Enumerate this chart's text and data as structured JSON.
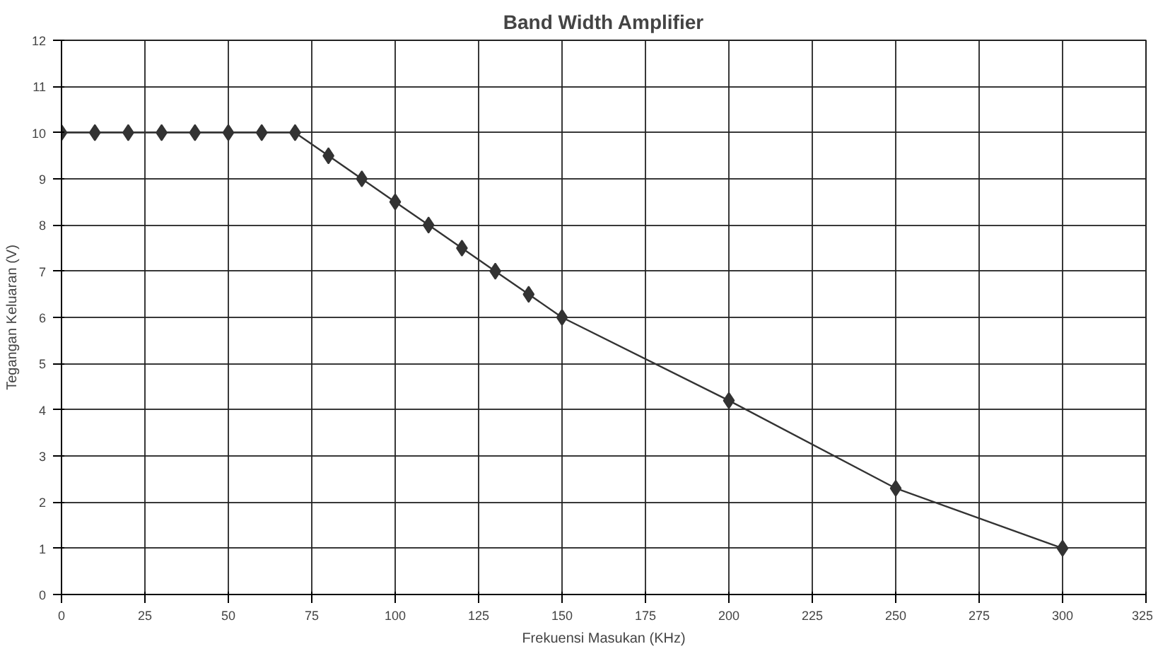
{
  "chart_data": {
    "type": "line",
    "title": "Band Width Amplifier",
    "xlabel": "Frekuensi Masukan (KHz)",
    "ylabel": "Tegangan Keluaran (V)",
    "x": [
      0,
      10,
      20,
      30,
      40,
      50,
      60,
      70,
      80,
      90,
      100,
      110,
      120,
      130,
      140,
      150,
      200,
      250,
      300
    ],
    "series": [
      {
        "color": "#333333",
        "values": [
          10,
          10,
          10,
          10,
          10,
          10,
          10,
          10,
          9.5,
          9,
          8.5,
          8,
          7.5,
          7,
          6.5,
          6,
          4.2,
          2.3,
          1
        ]
      }
    ],
    "xlim": [
      0,
      325
    ],
    "xticks": [
      0,
      25,
      50,
      75,
      100,
      125,
      150,
      175,
      200,
      225,
      250,
      275,
      300,
      325
    ],
    "ylim": [
      0,
      12
    ],
    "yticks": [
      0,
      1,
      2,
      3,
      4,
      5,
      6,
      7,
      8,
      9,
      10,
      11,
      12
    ],
    "grid": true,
    "marker": "diamond",
    "line_style": "solid"
  }
}
